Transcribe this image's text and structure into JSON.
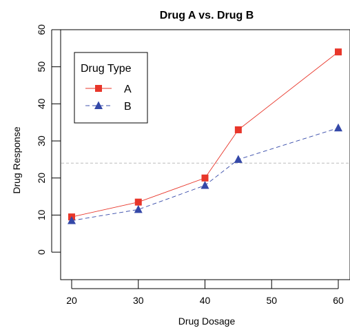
{
  "chart_data": {
    "type": "line",
    "title": "Drug A vs. Drug B",
    "xlabel": "Drug Dosage",
    "ylabel": "Drug Response",
    "x": [
      20,
      30,
      40,
      45,
      60
    ],
    "xticks": [
      20,
      30,
      40,
      50,
      60
    ],
    "yticks": [
      0,
      10,
      20,
      30,
      40,
      50,
      60
    ],
    "xlim": [
      20,
      60
    ],
    "ylim": [
      -5,
      60
    ],
    "grid": false,
    "reference_line": {
      "y": 24,
      "style": "dashed",
      "color": "#bbbbbb"
    },
    "legend": {
      "title": "Drug Type",
      "position": "top-left"
    },
    "series": [
      {
        "name": "A",
        "values": [
          9.5,
          13.5,
          20,
          33,
          54
        ],
        "color": "#e8362a",
        "marker": "square",
        "line_style": "solid"
      },
      {
        "name": "B",
        "values": [
          8.5,
          11.5,
          18,
          25,
          33.5
        ],
        "color": "#3448a8",
        "marker": "triangle",
        "line_style": "dashed"
      }
    ]
  }
}
